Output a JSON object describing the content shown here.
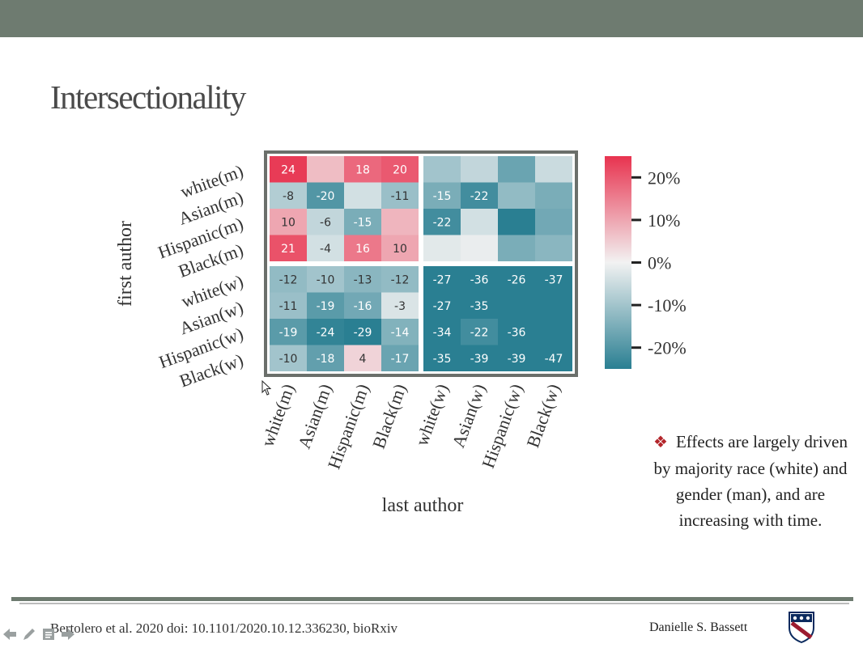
{
  "slide": {
    "title": "Intersectionality",
    "bullet": "Effects are largely driven by majority race (white) and gender (man), and are increasing with time.",
    "citation": "Bertolero et al. 2020 doi: 10.1101/2020.10.12.336230, bioRxiv",
    "author": "Danielle S. Bassett"
  },
  "colors": {
    "topbar": "#6e7b70",
    "positive": "#e8334f",
    "neutral": "#f2f2f2",
    "negative": "#2a7f92",
    "bullet_mark": "#b3252a"
  },
  "icons": [
    "back-arrow-icon",
    "pen-icon",
    "notes-icon",
    "forward-arrow-icon",
    "mouse-cursor-icon",
    "university-shield-icon"
  ],
  "chart_data": {
    "type": "heatmap",
    "title": "",
    "ylabel": "first author",
    "xlabel": "last author",
    "row_labels": [
      "white(m)",
      "Asian(m)",
      "Hispanic(m)",
      "Black(m)",
      "white(w)",
      "Asian(w)",
      "Hispanic(w)",
      "Black(w)"
    ],
    "col_labels": [
      "white(m)",
      "Asian(m)",
      "Hispanic(m)",
      "Black(m)",
      "white(w)",
      "Asian(w)",
      "Hispanic(w)",
      "Black(w)"
    ],
    "color_range": [
      -25,
      25
    ],
    "colorbar_ticks": [
      "20%",
      "10%",
      "0%",
      "-10%",
      "-20%"
    ],
    "colorbar_tick_values": [
      20,
      10,
      0,
      -10,
      -20
    ],
    "values": [
      [
        24,
        7,
        18,
        20,
        -10,
        -6,
        -17,
        -5
      ],
      [
        -8,
        -20,
        -4,
        -11,
        -15,
        -22,
        -12,
        -15
      ],
      [
        10,
        -6,
        -15,
        8,
        -22,
        -4,
        -28,
        -16
      ],
      [
        21,
        -4,
        16,
        10,
        -2,
        -1,
        -15,
        -13
      ],
      [
        -12,
        -10,
        -13,
        -12,
        -27,
        -36,
        -26,
        -37
      ],
      [
        -11,
        -19,
        -16,
        -3,
        -27,
        -35,
        -30,
        -30
      ],
      [
        -19,
        -24,
        -29,
        -14,
        -34,
        -22,
        -36,
        -30
      ],
      [
        -10,
        -18,
        4,
        -17,
        -35,
        -39,
        -39,
        -47
      ]
    ],
    "labels": [
      [
        "24",
        "",
        "18",
        "20",
        "",
        "",
        "",
        ""
      ],
      [
        "-8",
        "-20",
        "",
        "-11",
        "-15",
        "-22",
        "",
        ""
      ],
      [
        "10",
        "-6",
        "-15",
        "",
        "-22",
        "",
        "",
        ""
      ],
      [
        "21",
        "-4",
        "16",
        "10",
        "",
        "",
        "",
        ""
      ],
      [
        "-12",
        "-10",
        "-13",
        "-12",
        "-27",
        "-36",
        "-26",
        "-37"
      ],
      [
        "-11",
        "-19",
        "-16",
        "-3",
        "-27",
        "-35",
        "",
        ""
      ],
      [
        "-19",
        "-24",
        "-29",
        "-14",
        "-34",
        "-22",
        "-36",
        ""
      ],
      [
        "-10",
        "-18",
        "4",
        "-17",
        "-35",
        "-39",
        "-39",
        "-47"
      ]
    ]
  }
}
